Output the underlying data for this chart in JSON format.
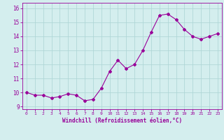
{
  "x": [
    0,
    1,
    2,
    3,
    4,
    5,
    6,
    7,
    8,
    9,
    10,
    11,
    12,
    13,
    14,
    15,
    16,
    17,
    18,
    19,
    20,
    21,
    22,
    23
  ],
  "y": [
    10.0,
    9.8,
    9.8,
    9.6,
    9.7,
    9.9,
    9.8,
    9.4,
    9.5,
    10.3,
    11.5,
    12.3,
    11.7,
    12.0,
    13.0,
    14.3,
    15.5,
    15.6,
    15.2,
    14.5,
    14.0,
    13.8,
    14.0,
    14.2
  ],
  "line_color": "#990099",
  "marker": "D",
  "marker_size": 2.0,
  "bg_color": "#d4eeee",
  "grid_color": "#aad4d4",
  "xlabel": "Windchill (Refroidissement éolien,°C)",
  "xlabel_color": "#990099",
  "tick_color": "#990099",
  "ylabel_ticks": [
    9,
    10,
    11,
    12,
    13,
    14,
    15,
    16
  ],
  "xtick_labels": [
    "0",
    "1",
    "2",
    "3",
    "4",
    "5",
    "6",
    "7",
    "8",
    "9",
    "10",
    "11",
    "12",
    "13",
    "14",
    "15",
    "16",
    "17",
    "18",
    "19",
    "20",
    "21",
    "22",
    "23"
  ],
  "xlim": [
    -0.5,
    23.5
  ],
  "ylim": [
    8.8,
    16.4
  ]
}
